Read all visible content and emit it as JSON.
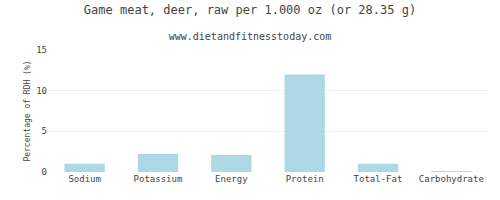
{
  "chart_data": {
    "type": "bar",
    "title": "Game meat, deer, raw per 1.000 oz (or 28.35 g)",
    "subtitle": "www.dietandfitnesstoday.com",
    "categories": [
      "Sodium",
      "Potassium",
      "Energy",
      "Protein",
      "Total-Fat",
      "Carbohydrate"
    ],
    "values": [
      1.0,
      2.2,
      2.1,
      12.0,
      1.0,
      0.05
    ],
    "color": "#add8e6",
    "ylabel": "Percentage of RDH (%)",
    "ylim": [
      0,
      15
    ],
    "yticks": [
      0,
      5,
      10,
      15
    ],
    "grid": true
  }
}
